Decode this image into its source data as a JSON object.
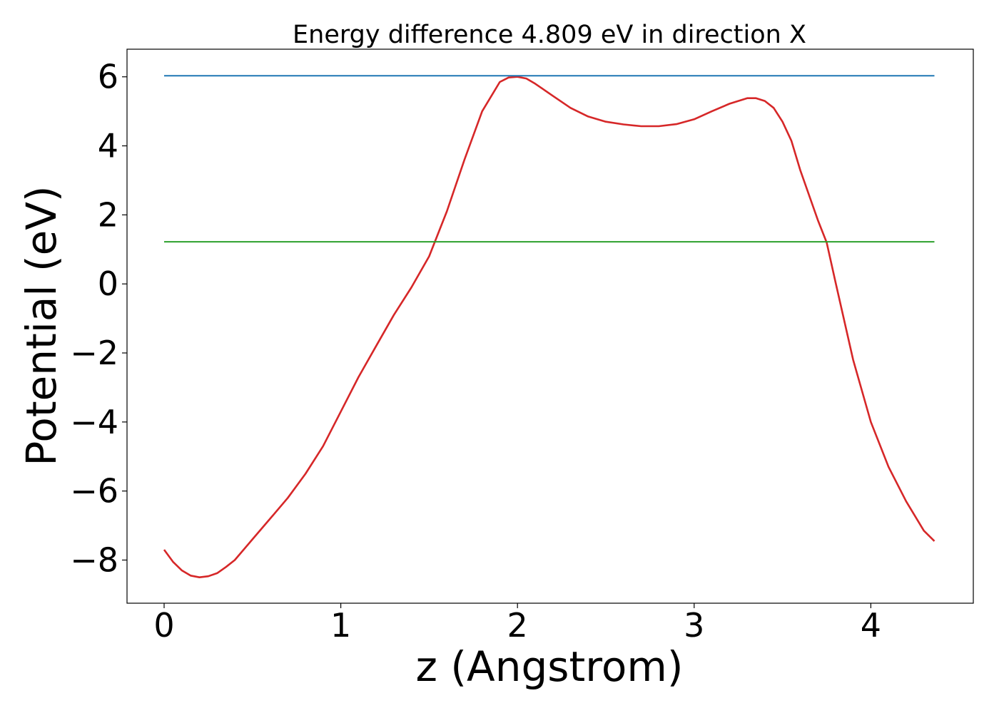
{
  "chart_data": {
    "type": "line",
    "title": "Energy difference 4.809 eV in direction X",
    "xlabel": "z (Angstrom)",
    "ylabel": "Potential (eV)",
    "xlim": [
      -0.21,
      4.58
    ],
    "ylim": [
      -9.25,
      6.8
    ],
    "xticks": [
      0,
      1,
      2,
      3,
      4
    ],
    "yticks": [
      -8,
      -6,
      -4,
      -2,
      0,
      2,
      4,
      6
    ],
    "xtick_labels": [
      "0",
      "1",
      "2",
      "3",
      "4"
    ],
    "ytick_labels": [
      "−8",
      "−6",
      "−4",
      "−2",
      "0",
      "2",
      "4",
      "6"
    ],
    "grid": false,
    "series": [
      {
        "color": "#d62728",
        "x": [
          0,
          0.05,
          0.1,
          0.15,
          0.2,
          0.25,
          0.3,
          0.35,
          0.4,
          0.5,
          0.6,
          0.7,
          0.8,
          0.9,
          1.0,
          1.1,
          1.2,
          1.3,
          1.4,
          1.5,
          1.6,
          1.7,
          1.8,
          1.9,
          1.95,
          2.0,
          2.05,
          2.1,
          2.2,
          2.3,
          2.4,
          2.5,
          2.6,
          2.7,
          2.8,
          2.9,
          3.0,
          3.1,
          3.2,
          3.3,
          3.35,
          3.4,
          3.45,
          3.5,
          3.55,
          3.6,
          3.7,
          3.75,
          3.8,
          3.9,
          4.0,
          4.1,
          4.2,
          4.3,
          4.36
        ],
        "y": [
          -7.7,
          -8.05,
          -8.3,
          -8.45,
          -8.5,
          -8.47,
          -8.38,
          -8.2,
          -8.0,
          -7.4,
          -6.8,
          -6.2,
          -5.5,
          -4.7,
          -3.7,
          -2.7,
          -1.8,
          -0.9,
          -0.1,
          0.8,
          2.1,
          3.6,
          5.0,
          5.85,
          5.98,
          6.0,
          5.95,
          5.8,
          5.45,
          5.1,
          4.85,
          4.7,
          4.62,
          4.57,
          4.57,
          4.63,
          4.77,
          5.0,
          5.22,
          5.38,
          5.38,
          5.3,
          5.1,
          4.7,
          4.15,
          3.3,
          1.85,
          1.2,
          0.05,
          -2.2,
          -4.0,
          -5.3,
          -6.3,
          -7.15,
          -7.45
        ]
      },
      {
        "color": "#1f77b4",
        "x": [
          0,
          4.36
        ],
        "y": [
          6.03,
          6.03
        ]
      },
      {
        "color": "#2ca02c",
        "x": [
          0,
          4.36
        ],
        "y": [
          1.22,
          1.22
        ]
      }
    ]
  }
}
